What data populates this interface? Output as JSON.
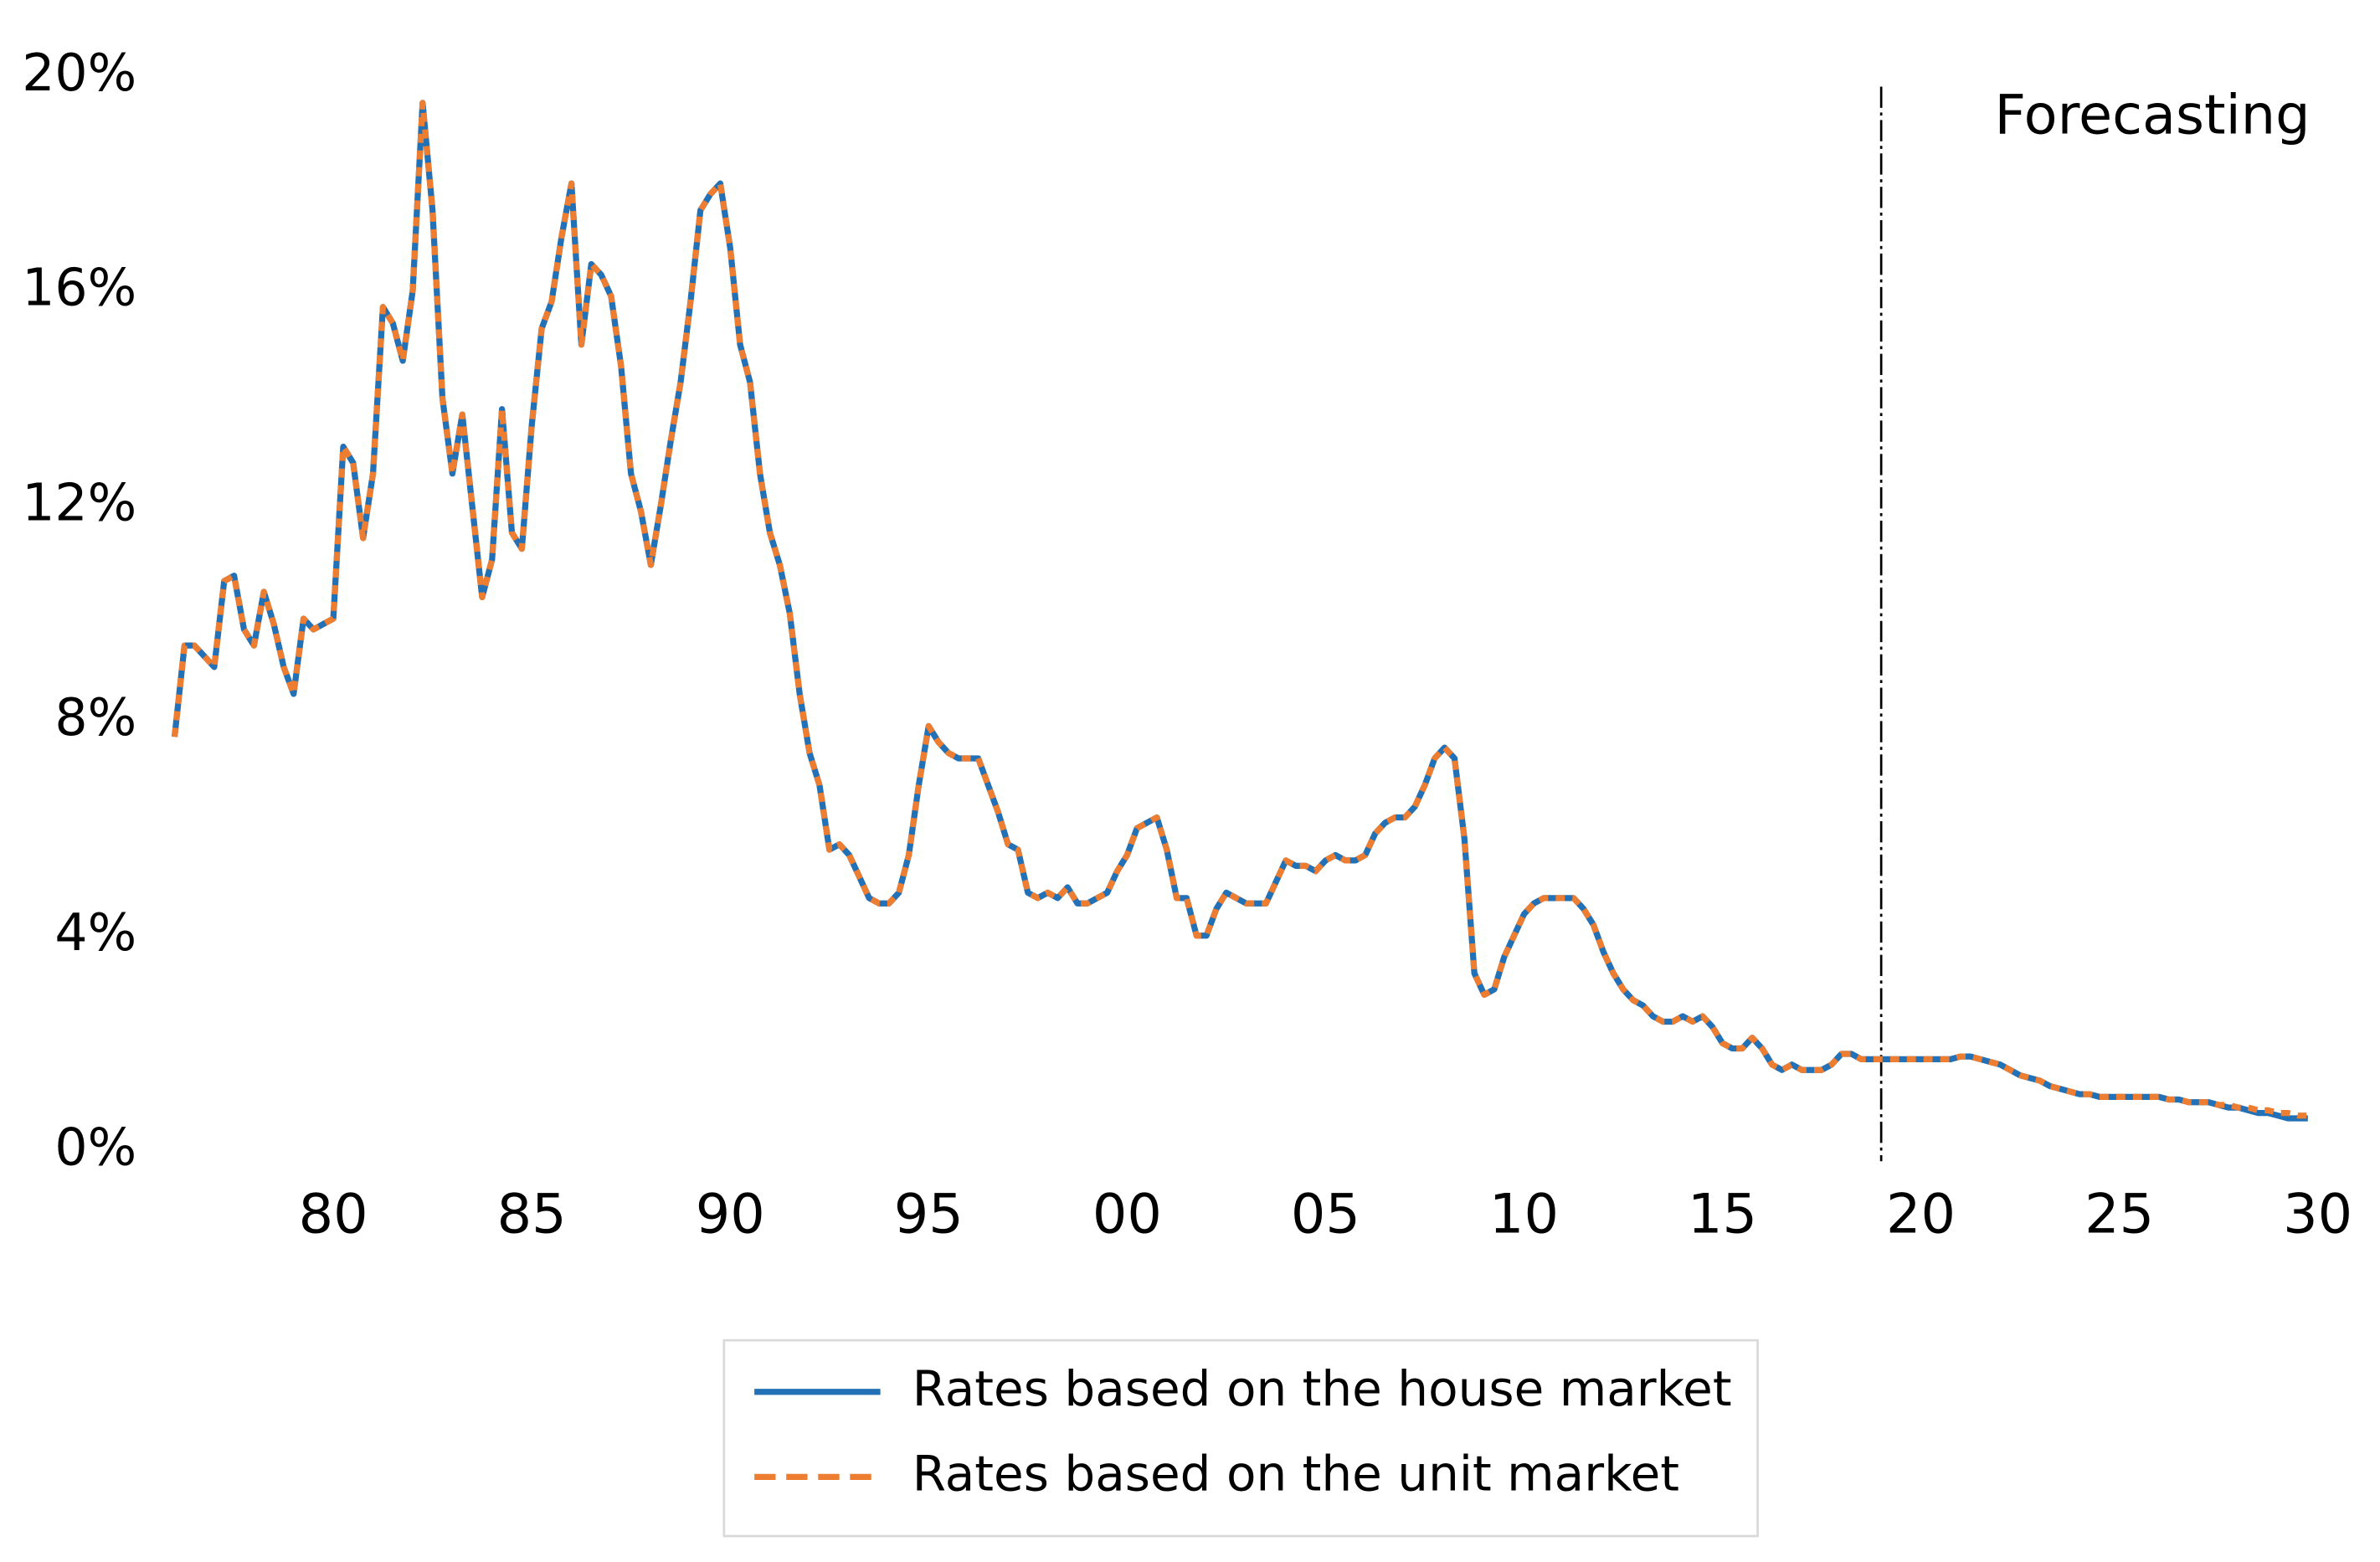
{
  "chart_data": {
    "type": "line",
    "x": [
      1976,
      1976.25,
      1976.5,
      1976.75,
      1977,
      1977.25,
      1977.5,
      1977.75,
      1978,
      1978.25,
      1978.5,
      1978.75,
      1979,
      1979.25,
      1979.5,
      1979.75,
      1980,
      1980.25,
      1980.5,
      1980.75,
      1981,
      1981.25,
      1981.5,
      1981.75,
      1982,
      1982.25,
      1982.5,
      1982.75,
      1983,
      1983.25,
      1983.5,
      1983.75,
      1984,
      1984.25,
      1984.5,
      1984.75,
      1985,
      1985.25,
      1985.5,
      1985.75,
      1986,
      1986.25,
      1986.5,
      1986.75,
      1987,
      1987.25,
      1987.5,
      1987.75,
      1988,
      1988.25,
      1988.5,
      1988.75,
      1989,
      1989.25,
      1989.5,
      1989.75,
      1990,
      1990.25,
      1990.5,
      1990.75,
      1991,
      1991.25,
      1991.5,
      1991.75,
      1992,
      1992.25,
      1992.5,
      1992.75,
      1993,
      1993.25,
      1993.5,
      1993.75,
      1994,
      1994.25,
      1994.5,
      1994.75,
      1995,
      1995.25,
      1995.5,
      1995.75,
      1996,
      1996.25,
      1996.5,
      1996.75,
      1997,
      1997.25,
      1997.5,
      1997.75,
      1998,
      1998.25,
      1998.5,
      1998.75,
      1999,
      1999.25,
      1999.5,
      1999.75,
      2000,
      2000.25,
      2000.5,
      2000.75,
      2001,
      2001.25,
      2001.5,
      2001.75,
      2002,
      2002.25,
      2002.5,
      2002.75,
      2003,
      2003.25,
      2003.5,
      2003.75,
      2004,
      2004.25,
      2004.5,
      2004.75,
      2005,
      2005.25,
      2005.5,
      2005.75,
      2006,
      2006.25,
      2006.5,
      2006.75,
      2007,
      2007.25,
      2007.5,
      2007.75,
      2008,
      2008.25,
      2008.5,
      2008.75,
      2009,
      2009.25,
      2009.5,
      2009.75,
      2010,
      2010.25,
      2010.5,
      2010.75,
      2011,
      2011.25,
      2011.5,
      2011.75,
      2012,
      2012.25,
      2012.5,
      2012.75,
      2013,
      2013.25,
      2013.5,
      2013.75,
      2014,
      2014.25,
      2014.5,
      2014.75,
      2015,
      2015.25,
      2015.5,
      2015.75,
      2016,
      2016.25,
      2016.5,
      2016.75,
      2017,
      2017.25,
      2017.5,
      2017.75,
      2018,
      2018.25,
      2018.5,
      2018.75,
      2019,
      2019.25,
      2019.5,
      2019.75,
      2020,
      2020.25,
      2020.5,
      2020.75,
      2021,
      2021.25,
      2021.5,
      2021.75,
      2022,
      2022.25,
      2022.5,
      2022.75,
      2023,
      2023.25,
      2023.5,
      2023.75,
      2024,
      2024.25,
      2024.5,
      2024.75,
      2025,
      2025.25,
      2025.5,
      2025.75,
      2026,
      2026.25,
      2026.5,
      2026.75,
      2027,
      2027.25,
      2027.5,
      2027.75,
      2028,
      2028.25,
      2028.5,
      2028.75,
      2029,
      2029.25,
      2029.5,
      2029.75
    ],
    "series": [
      {
        "name": "Rates based on the house market",
        "color": "#2270b5",
        "dashed": false,
        "values": [
          7.7,
          9.4,
          9.4,
          9.2,
          9.0,
          10.6,
          10.7,
          9.7,
          9.4,
          10.4,
          9.8,
          9.0,
          8.5,
          9.9,
          9.7,
          9.8,
          9.9,
          13.1,
          12.8,
          11.4,
          12.6,
          15.7,
          15.4,
          14.7,
          16.0,
          19.5,
          17.5,
          14.0,
          12.6,
          13.7,
          12.0,
          10.3,
          11.0,
          13.8,
          11.5,
          11.2,
          13.5,
          15.3,
          15.8,
          17.0,
          18.0,
          15.0,
          16.5,
          16.3,
          15.9,
          14.6,
          12.6,
          11.9,
          10.9,
          12.0,
          13.2,
          14.3,
          15.8,
          17.5,
          17.8,
          18.0,
          16.8,
          15.0,
          14.3,
          12.6,
          11.5,
          10.9,
          10.0,
          8.5,
          7.4,
          6.8,
          5.6,
          5.7,
          5.5,
          5.1,
          4.7,
          4.6,
          4.6,
          4.8,
          5.5,
          6.8,
          7.9,
          7.6,
          7.4,
          7.3,
          7.3,
          7.3,
          6.8,
          6.3,
          5.7,
          5.6,
          4.8,
          4.7,
          4.8,
          4.7,
          4.9,
          4.6,
          4.6,
          4.7,
          4.8,
          5.2,
          5.5,
          6.0,
          6.1,
          6.2,
          5.6,
          4.7,
          4.7,
          4.0,
          4.0,
          4.5,
          4.8,
          4.7,
          4.6,
          4.6,
          4.6,
          5.0,
          5.4,
          5.3,
          5.3,
          5.2,
          5.4,
          5.5,
          5.4,
          5.4,
          5.5,
          5.9,
          6.1,
          6.2,
          6.2,
          6.4,
          6.8,
          7.3,
          7.5,
          7.3,
          5.8,
          3.3,
          2.9,
          3.0,
          3.6,
          4.0,
          4.4,
          4.6,
          4.7,
          4.7,
          4.7,
          4.7,
          4.5,
          4.2,
          3.7,
          3.3,
          3.0,
          2.8,
          2.7,
          2.5,
          2.4,
          2.4,
          2.5,
          2.4,
          2.5,
          2.3,
          2.0,
          1.9,
          1.9,
          2.1,
          1.9,
          1.6,
          1.5,
          1.6,
          1.5,
          1.5,
          1.5,
          1.6,
          1.8,
          1.8,
          1.7,
          1.7,
          1.7,
          1.7,
          1.7,
          1.7,
          1.7,
          1.7,
          1.7,
          1.7,
          1.75,
          1.75,
          1.7,
          1.65,
          1.6,
          1.5,
          1.4,
          1.35,
          1.3,
          1.2,
          1.15,
          1.1,
          1.05,
          1.05,
          1.0,
          1.0,
          1.0,
          1.0,
          1.0,
          1.0,
          1.0,
          0.95,
          0.95,
          0.9,
          0.9,
          0.9,
          0.85,
          0.8,
          0.8,
          0.75,
          0.7,
          0.7,
          0.65,
          0.6,
          0.6,
          0.6
        ]
      },
      {
        "name": "Rates based on the unit market",
        "color": "#ed7d31",
        "dashed": true,
        "values": [
          7.7,
          9.4,
          9.4,
          9.2,
          9.0,
          10.6,
          10.7,
          9.7,
          9.4,
          10.4,
          9.8,
          9.0,
          8.5,
          9.9,
          9.7,
          9.8,
          9.9,
          13.1,
          12.8,
          11.4,
          12.6,
          15.7,
          15.4,
          14.7,
          16.0,
          19.5,
          17.5,
          14.0,
          12.6,
          13.7,
          12.0,
          10.3,
          11.0,
          13.8,
          11.5,
          11.2,
          13.5,
          15.3,
          15.8,
          17.0,
          18.0,
          15.0,
          16.5,
          16.3,
          15.9,
          14.6,
          12.6,
          11.9,
          10.9,
          12.0,
          13.2,
          14.3,
          15.8,
          17.5,
          17.8,
          18.0,
          16.8,
          15.0,
          14.3,
          12.6,
          11.5,
          10.9,
          10.0,
          8.5,
          7.4,
          6.8,
          5.6,
          5.7,
          5.5,
          5.1,
          4.7,
          4.6,
          4.6,
          4.8,
          5.5,
          6.8,
          7.9,
          7.6,
          7.4,
          7.3,
          7.3,
          7.3,
          6.8,
          6.3,
          5.7,
          5.6,
          4.8,
          4.7,
          4.8,
          4.7,
          4.9,
          4.6,
          4.6,
          4.7,
          4.8,
          5.2,
          5.5,
          6.0,
          6.1,
          6.2,
          5.6,
          4.7,
          4.7,
          4.0,
          4.0,
          4.5,
          4.8,
          4.7,
          4.6,
          4.6,
          4.6,
          5.0,
          5.4,
          5.3,
          5.3,
          5.2,
          5.4,
          5.5,
          5.4,
          5.4,
          5.5,
          5.9,
          6.1,
          6.2,
          6.2,
          6.4,
          6.8,
          7.3,
          7.5,
          7.3,
          5.8,
          3.3,
          2.9,
          3.0,
          3.6,
          4.0,
          4.4,
          4.6,
          4.7,
          4.7,
          4.7,
          4.7,
          4.5,
          4.2,
          3.7,
          3.3,
          3.0,
          2.8,
          2.7,
          2.5,
          2.4,
          2.4,
          2.5,
          2.4,
          2.5,
          2.3,
          2.0,
          1.9,
          1.9,
          2.1,
          1.9,
          1.6,
          1.5,
          1.6,
          1.5,
          1.5,
          1.5,
          1.6,
          1.8,
          1.8,
          1.7,
          1.7,
          1.7,
          1.7,
          1.7,
          1.7,
          1.7,
          1.7,
          1.7,
          1.7,
          1.75,
          1.75,
          1.7,
          1.65,
          1.6,
          1.5,
          1.4,
          1.35,
          1.3,
          1.2,
          1.15,
          1.1,
          1.05,
          1.05,
          1.0,
          1.0,
          1.0,
          1.0,
          1.0,
          1.0,
          1.0,
          0.95,
          0.95,
          0.9,
          0.9,
          0.9,
          0.85,
          0.85,
          0.8,
          0.8,
          0.75,
          0.75,
          0.7,
          0.7,
          0.65,
          0.65
        ]
      }
    ],
    "xlim": [
      1976,
      2030
    ],
    "xticks": [
      {
        "value": 1980,
        "label": "80"
      },
      {
        "value": 1985,
        "label": "85"
      },
      {
        "value": 1990,
        "label": "90"
      },
      {
        "value": 1995,
        "label": "95"
      },
      {
        "value": 2000,
        "label": "00"
      },
      {
        "value": 2005,
        "label": "05"
      },
      {
        "value": 2010,
        "label": "10"
      },
      {
        "value": 2015,
        "label": "15"
      },
      {
        "value": 2020,
        "label": "20"
      },
      {
        "value": 2025,
        "label": "25"
      },
      {
        "value": 2030,
        "label": "30"
      }
    ],
    "ylim": [
      0,
      20
    ],
    "yticks": [
      {
        "value": 0,
        "label": "0%"
      },
      {
        "value": 4,
        "label": "4%"
      },
      {
        "value": 8,
        "label": "8%"
      },
      {
        "value": 12,
        "label": "12%"
      },
      {
        "value": 16,
        "label": "16%"
      },
      {
        "value": 20,
        "label": "20%"
      }
    ],
    "forecast_line": {
      "x": 2019,
      "label": "Forecasting"
    },
    "legend": "bottom"
  }
}
